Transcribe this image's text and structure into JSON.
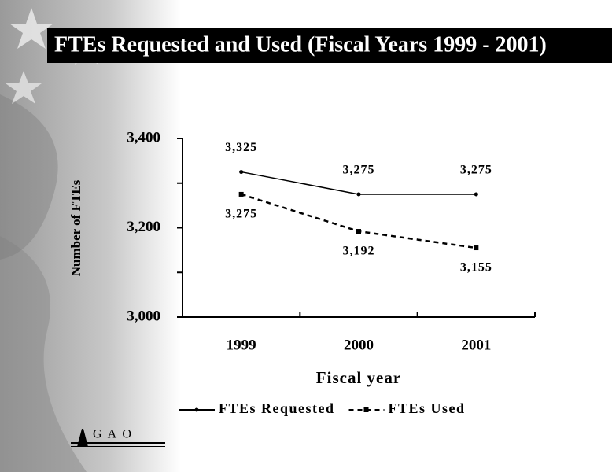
{
  "chart_data": {
    "type": "line",
    "title": "FTEs Requested and Used (Fiscal Years 1999 - 2001)",
    "x_label": "Fiscal year",
    "y_label": "Number of FTEs",
    "categories": [
      "1999",
      "2000",
      "2001"
    ],
    "series": [
      {
        "name": "FTEs Requested",
        "color": "#000000",
        "style": "solid",
        "marker": "dot",
        "values": [
          3325,
          3275,
          3275
        ],
        "value_labels": [
          "3,325",
          "3,275",
          "3,275"
        ]
      },
      {
        "name": "FTEs Used",
        "color": "#000000",
        "style": "dashed",
        "marker": "square",
        "values": [
          3275,
          3192,
          3155
        ],
        "value_labels": [
          "3,275",
          "3,192",
          "3,155"
        ]
      }
    ],
    "ylim": [
      3000,
      3400
    ],
    "yticks": [
      {
        "value": 3000,
        "label": "3,000"
      },
      {
        "value": 3200,
        "label": "3,200"
      },
      {
        "value": 3400,
        "label": "3,400"
      }
    ],
    "yminor": [
      3100,
      3300
    ],
    "legend": "bottom"
  },
  "logo": "G A O"
}
